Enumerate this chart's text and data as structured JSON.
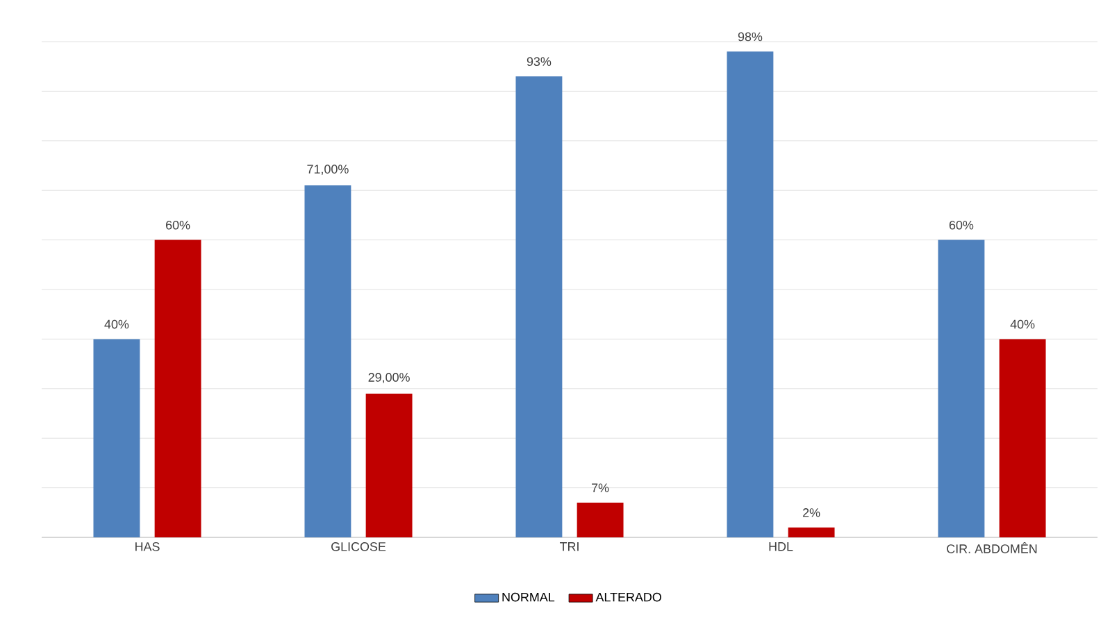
{
  "chart_data": {
    "type": "bar",
    "categories": [
      "HAS",
      "GLICOSE",
      "TRI",
      "HDL",
      "CIR. ABDOMÊN"
    ],
    "series": [
      {
        "name": "NORMAL",
        "color": "#4f81bd",
        "values": [
          40,
          71,
          93,
          98,
          60
        ],
        "value_labels": [
          "40%",
          "71,00%",
          "93%",
          "98%",
          "60%"
        ]
      },
      {
        "name": "ALTERADO",
        "color": "#c00000",
        "values": [
          60,
          29,
          7,
          2,
          40
        ],
        "value_labels": [
          "60%",
          "29,00%",
          "7%",
          "2%",
          "40%"
        ]
      }
    ],
    "ylim": [
      0,
      100
    ],
    "yticks": [
      {
        "value": 0,
        "label": null
      },
      {
        "value": 10,
        "label": null
      },
      {
        "value": 20,
        "label": null
      },
      {
        "value": 30,
        "label": null
      },
      {
        "value": 40,
        "label": null
      },
      {
        "value": 50,
        "label": null
      },
      {
        "value": 60,
        "label": null
      },
      {
        "value": 70,
        "label": null
      },
      {
        "value": 80,
        "label": null
      },
      {
        "value": 90,
        "label": null
      },
      {
        "value": 100,
        "label": null
      }
    ],
    "tick_labels": "x",
    "grid": "y",
    "legend": "bottom"
  }
}
